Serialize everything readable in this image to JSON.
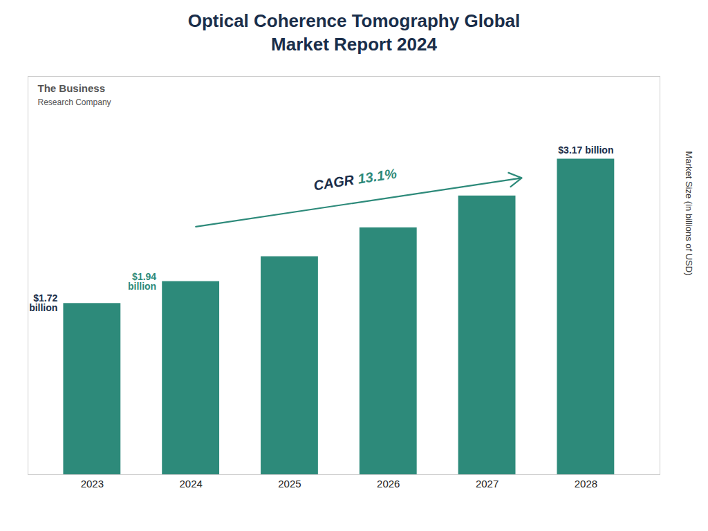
{
  "chart_data": {
    "type": "bar",
    "title": "Optical Coherence Tomography Global\nMarket Report 2024",
    "categories": [
      "2023",
      "2024",
      "2025",
      "2026",
      "2027",
      "2028"
    ],
    "values": [
      1.72,
      1.94,
      2.19,
      2.48,
      2.8,
      3.17
    ],
    "color": "#2d8a7a",
    "ylabel": "Market Size (in billions of USD)",
    "ylim": [
      0,
      4.0
    ],
    "tick_labels": "x",
    "annotations": [
      {
        "text": "$1.72\nbillion",
        "category": "2023",
        "color": "#1a2e4a"
      },
      {
        "text": "$1.94\nbillion",
        "category": "2024",
        "color": "#2d8a7a"
      },
      {
        "text": "$3.17 billion",
        "category": "2028",
        "color": "#1a2e4a"
      },
      {
        "parts": [
          {
            "text": "CAGR ",
            "color": "#1a2e4a"
          },
          {
            "text": "13.1%",
            "color": "#2d8a7a"
          }
        ],
        "arrow_from": "2024",
        "arrow_to": "2027",
        "arrow_color": "#2d8a7a"
      },
      {
        "parts": [
          {
            "text": "The Business"
          },
          {
            "text": "Research Company"
          }
        ],
        "color": "#555555"
      }
    ]
  }
}
